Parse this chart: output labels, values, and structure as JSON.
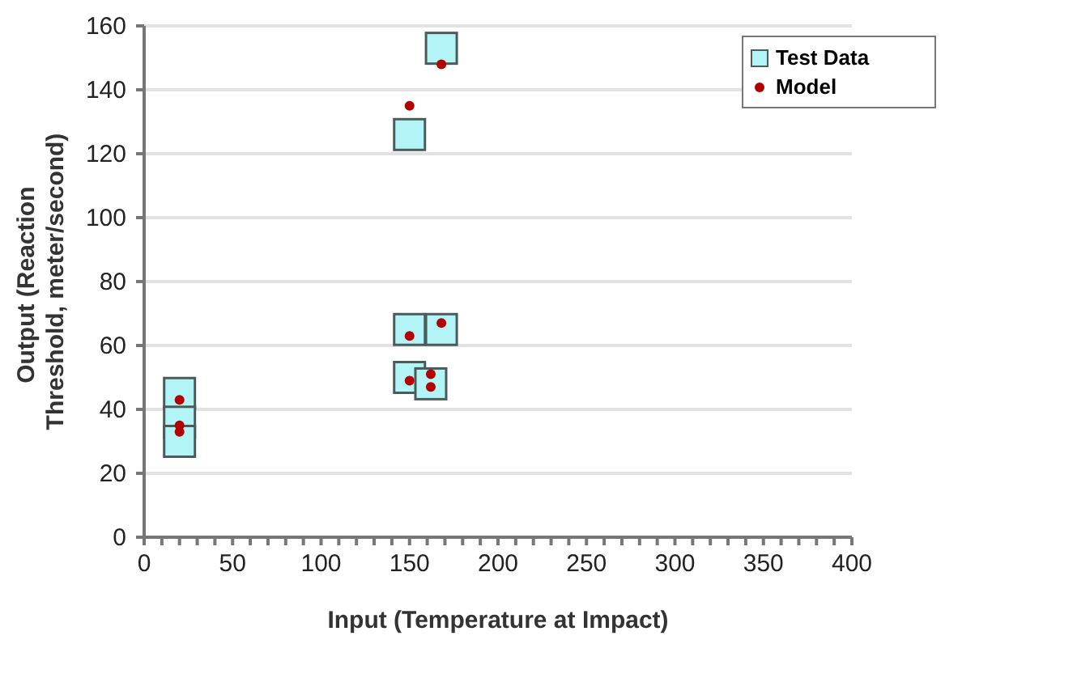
{
  "chart_data": {
    "type": "scatter",
    "xlabel": "Input (Temperature at Impact)",
    "ylabel": "Output (Reaction Threshold, meter/second)",
    "xlim": [
      0,
      400
    ],
    "ylim": [
      0,
      160
    ],
    "xticks": [
      0,
      {
        "value": 10,
        "label": null
      },
      {
        "value": 20,
        "label": null
      },
      {
        "value": 30,
        "label": null
      },
      {
        "value": 40,
        "label": null
      },
      50,
      {
        "value": 60,
        "label": null
      },
      {
        "value": 70,
        "label": null
      },
      {
        "value": 80,
        "label": null
      },
      {
        "value": 90,
        "label": null
      },
      100,
      {
        "value": 110,
        "label": null
      },
      {
        "value": 120,
        "label": null
      },
      {
        "value": 130,
        "label": null
      },
      {
        "value": 140,
        "label": null
      },
      150,
      {
        "value": 160,
        "label": null
      },
      {
        "value": 170,
        "label": null
      },
      {
        "value": 180,
        "label": null
      },
      {
        "value": 190,
        "label": null
      },
      200,
      {
        "value": 210,
        "label": null
      },
      {
        "value": 220,
        "label": null
      },
      {
        "value": 230,
        "label": null
      },
      {
        "value": 240,
        "label": null
      },
      250,
      {
        "value": 260,
        "label": null
      },
      {
        "value": 270,
        "label": null
      },
      {
        "value": 280,
        "label": null
      },
      {
        "value": 290,
        "label": null
      },
      300,
      {
        "value": 310,
        "label": null
      },
      {
        "value": 320,
        "label": null
      },
      {
        "value": 330,
        "label": null
      },
      {
        "value": 340,
        "label": null
      },
      350,
      {
        "value": 360,
        "label": null
      },
      {
        "value": 370,
        "label": null
      },
      {
        "value": 380,
        "label": null
      },
      {
        "value": 390,
        "label": null
      },
      400
    ],
    "yticks": [
      0,
      20,
      40,
      60,
      80,
      100,
      120,
      140,
      160
    ],
    "grid": "y",
    "legend": "top right",
    "series": [
      {
        "name": "Test Data",
        "color": "#b3f4f6",
        "marker": "square",
        "x": [
          20,
          20,
          20,
          150,
          150,
          150,
          162,
          168,
          168
        ],
        "values": [
          45,
          36,
          30,
          126,
          65,
          50,
          48,
          153,
          65
        ]
      },
      {
        "name": "Model",
        "color": "#b00000",
        "marker": "circle",
        "x": [
          20,
          20,
          20,
          150,
          150,
          150,
          162,
          162,
          168,
          168
        ],
        "values": [
          43,
          35,
          33,
          135,
          63,
          49,
          47,
          51,
          148,
          67
        ]
      }
    ]
  }
}
